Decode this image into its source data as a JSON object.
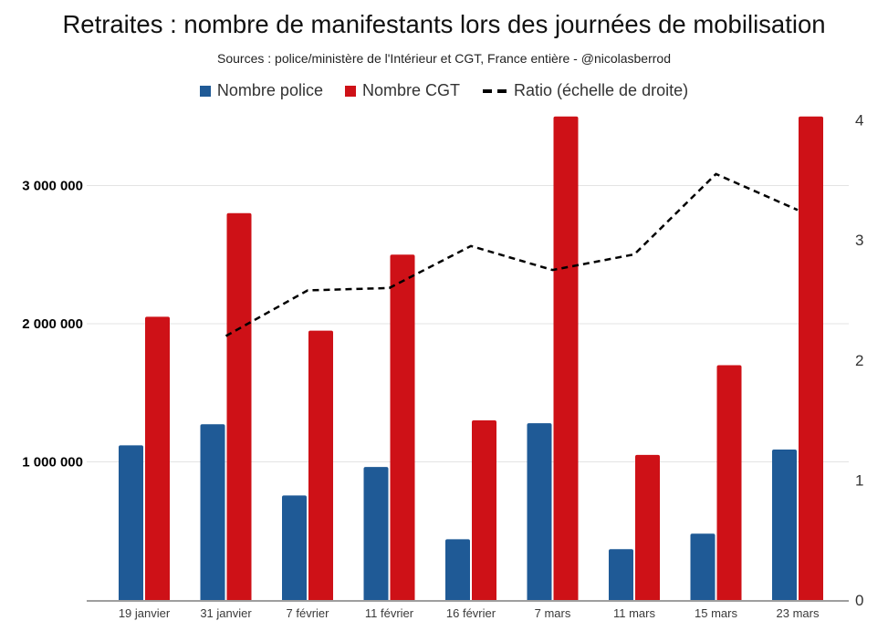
{
  "header": {
    "title": "Retraites : nombre de manifestants lors des journées de mobilisation",
    "subtitle": "Sources : police/ministère de l'Intérieur et CGT, France entière - @nicolasberrod"
  },
  "legend": {
    "police_label": "Nombre police",
    "cgt_label": "Nombre CGT",
    "ratio_label": "Ratio (échelle de droite)"
  },
  "colors": {
    "police": "#1f5a96",
    "cgt": "#ce1117",
    "ratio_line": "#000000",
    "gridline": "#e3e3e3",
    "axis_line": "#9e9e9e",
    "left_tick_text": "#000000",
    "right_tick_text": "#333333",
    "x_tick_text": "#3a3a3a"
  },
  "chart_data": {
    "type": "bar",
    "subtype": "grouped bars with dashed ratio line on secondary right axis",
    "title": "Retraites : nombre de manifestants lors des journées de mobilisation",
    "subtitle": "Sources : police/ministère de l'Intérieur et CGT, France entière - @nicolasberrod",
    "categories": [
      "19 janvier",
      "31 janvier",
      "7 février",
      "11 février",
      "16 février",
      "7 mars",
      "11 mars",
      "15 mars",
      "23 mars"
    ],
    "series": [
      {
        "name": "Nombre police",
        "type": "bar",
        "axis": "left",
        "color": "#1f5a96",
        "values": [
          1120000,
          1272000,
          757000,
          963000,
          440000,
          1280000,
          368000,
          480000,
          1089000
        ]
      },
      {
        "name": "Nombre CGT",
        "type": "bar",
        "axis": "left",
        "color": "#ce1117",
        "values": [
          2050000,
          2800000,
          1950000,
          2500000,
          1300000,
          3500000,
          1050000,
          1700000,
          3500000
        ]
      },
      {
        "name": "Ratio (échelle de droite)",
        "type": "line",
        "axis": "right",
        "color": "#000000",
        "dashed": true,
        "values": [
          null,
          2.2,
          2.58,
          2.6,
          2.95,
          2.75,
          2.88,
          3.55,
          3.25
        ]
      }
    ],
    "left_axis": {
      "ticks": [
        "1 000 000",
        "2 000 000",
        "3 000 000"
      ],
      "tick_values": [
        1000000,
        2000000,
        3000000
      ],
      "range": [
        0,
        3500000
      ]
    },
    "right_axis": {
      "ticks": [
        "0",
        "1",
        "2",
        "3",
        "4"
      ],
      "tick_values": [
        0,
        1,
        2,
        3,
        4
      ],
      "range": [
        0,
        4
      ]
    },
    "grid": "horizontal only",
    "legend_position": "top"
  }
}
